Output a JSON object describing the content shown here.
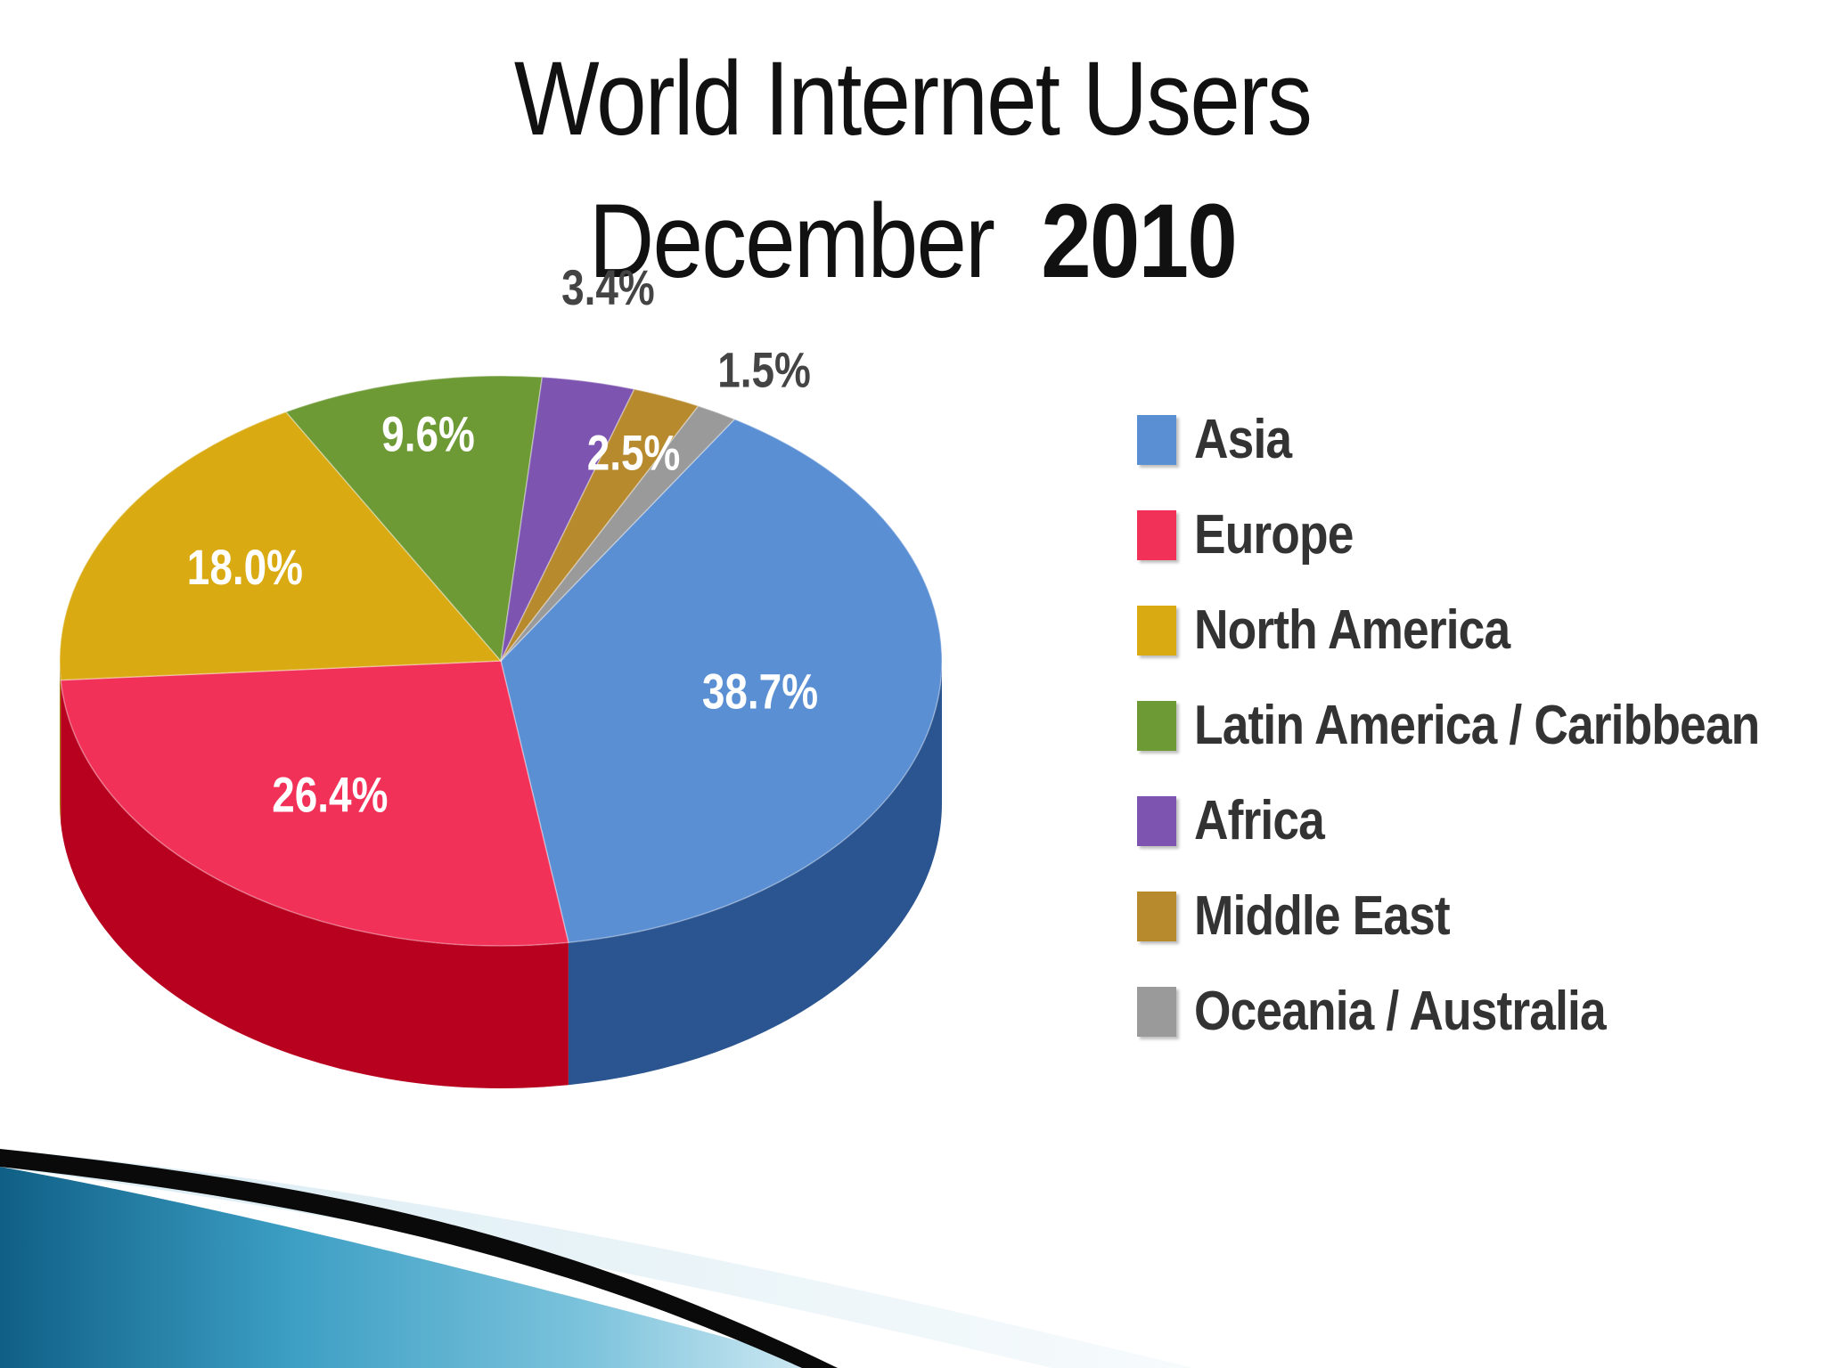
{
  "slide": {
    "title_line1": "World Internet Users",
    "title_line2_month": "December",
    "title_line2_year": "2010"
  },
  "chart_data": {
    "type": "pie",
    "title": "World Internet Users December 2010",
    "unit": "%",
    "slices": [
      {
        "name": "Asia",
        "value": 38.7,
        "label": "38.7%",
        "color": "#5b8fd4",
        "side_color": "#2b5590",
        "label_color": "#ffffff"
      },
      {
        "name": "Europe",
        "value": 26.4,
        "label": "26.4%",
        "color": "#f23158",
        "side_color": "#b8001f",
        "label_color": "#ffffff"
      },
      {
        "name": "North America",
        "value": 18.0,
        "label": "18.0%",
        "color": "#d9aa12",
        "side_color": "#a07a05",
        "label_color": "#ffffff"
      },
      {
        "name": "Latin America / Caribbean",
        "value": 9.6,
        "label": "9.6%",
        "color": "#6d9a35",
        "side_color": "#4a6e1f",
        "label_color": "#ffffff"
      },
      {
        "name": "Africa",
        "value": 3.4,
        "label": "3.4%",
        "color": "#7d55b0",
        "side_color": "#54357e",
        "label_color": "#444444"
      },
      {
        "name": "Middle East",
        "value": 2.5,
        "label": "2.5%",
        "color": "#b88a2e",
        "side_color": "#7e5c15",
        "label_color": "#ffffff"
      },
      {
        "name": "Oceania / Australia",
        "value": 1.5,
        "label": "1.5%",
        "color": "#9a9a9a",
        "side_color": "#6a6a6a",
        "label_color": "#444444"
      }
    ],
    "legend_position": "right",
    "style": "3d-pie"
  }
}
